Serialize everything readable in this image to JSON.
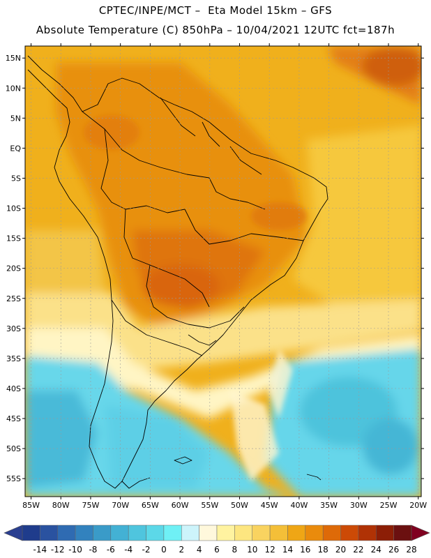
{
  "header": {
    "line1": "CPTEC/INPE/MCT –  Eta Model 15km – GFS",
    "line2": "Absolute Temperature (C) 850hPa – 10/04/2021 12UTC fct=187h"
  },
  "map": {
    "lat_labels": [
      "15N",
      "10N",
      "5N",
      "EQ",
      "5S",
      "10S",
      "15S",
      "20S",
      "25S",
      "30S",
      "35S",
      "40S",
      "45S",
      "50S",
      "55S"
    ],
    "lon_labels": [
      "85W",
      "80W",
      "75W",
      "70W",
      "65W",
      "60W",
      "55W",
      "50W",
      "45W",
      "40W",
      "35W",
      "30W",
      "25W",
      "20W"
    ],
    "lat_range": [
      17,
      -58
    ],
    "lon_range": [
      -86,
      -19.5
    ]
  },
  "colorbar": {
    "labels": [
      "-14",
      "-12",
      "-10",
      "-8",
      "-6",
      "-4",
      "-2",
      "0",
      "2",
      "4",
      "6",
      "8",
      "10",
      "12",
      "14",
      "16",
      "18",
      "20",
      "22",
      "24",
      "26",
      "28"
    ],
    "colors": [
      "#1f3c8c",
      "#2a52a0",
      "#2f6bb2",
      "#3282be",
      "#3a9bc8",
      "#43b1d4",
      "#4fc5de",
      "#5cd8e8",
      "#6ff0f5",
      "#cdf4fb",
      "#fff8dc",
      "#fff3a0",
      "#fde680",
      "#f9d360",
      "#f4bf38",
      "#efa615",
      "#ea8b0c",
      "#de6a08",
      "#cc4a06",
      "#b03205",
      "#8c1e06",
      "#6b1010"
    ],
    "under_color": "#2a3f90",
    "over_color": "#800020"
  }
}
